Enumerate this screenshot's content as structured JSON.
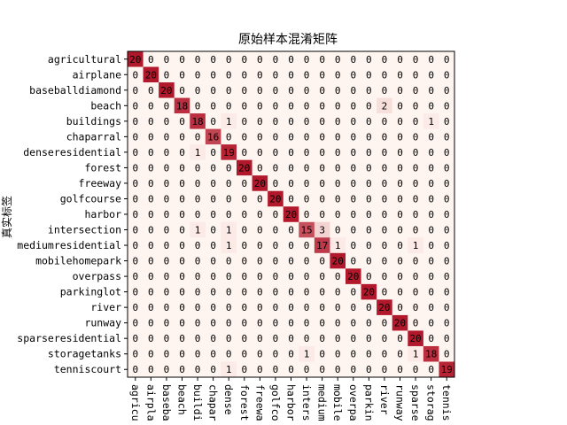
{
  "chart_data": {
    "type": "heatmap",
    "title": "原始样本混淆矩阵",
    "ylabel": "真实标签",
    "xlabel": "",
    "labels": [
      "agricultural",
      "airplane",
      "baseballdiamond",
      "beach",
      "buildings",
      "chaparral",
      "denseresidential",
      "forest",
      "freeway",
      "golfcourse",
      "harbor",
      "intersection",
      "mediumresidential",
      "mobilehomepark",
      "overpass",
      "parkinglot",
      "river",
      "runway",
      "sparseresidential",
      "storagetanks",
      "tenniscourt"
    ],
    "x_tick_labels": [
      "agricu",
      "airpla",
      "baseba",
      "beach",
      "buildi",
      "chapar",
      "dense",
      "forest",
      "freewa",
      "golfco",
      "harbor",
      "inters",
      "medium",
      "mobile",
      "overpa",
      "parkin",
      "river",
      "runway",
      "sparse",
      "storag",
      "tennis"
    ],
    "values": [
      [
        20,
        0,
        0,
        0,
        0,
        0,
        0,
        0,
        0,
        0,
        0,
        0,
        0,
        0,
        0,
        0,
        0,
        0,
        0,
        0,
        0
      ],
      [
        0,
        20,
        0,
        0,
        0,
        0,
        0,
        0,
        0,
        0,
        0,
        0,
        0,
        0,
        0,
        0,
        0,
        0,
        0,
        0,
        0
      ],
      [
        0,
        0,
        20,
        0,
        0,
        0,
        0,
        0,
        0,
        0,
        0,
        0,
        0,
        0,
        0,
        0,
        0,
        0,
        0,
        0,
        0
      ],
      [
        0,
        0,
        0,
        18,
        0,
        0,
        0,
        0,
        0,
        0,
        0,
        0,
        0,
        0,
        0,
        0,
        2,
        0,
        0,
        0,
        0
      ],
      [
        0,
        0,
        0,
        0,
        18,
        0,
        1,
        0,
        0,
        0,
        0,
        0,
        0,
        0,
        0,
        0,
        0,
        0,
        0,
        1,
        0
      ],
      [
        0,
        0,
        0,
        0,
        0,
        16,
        0,
        0,
        0,
        0,
        0,
        0,
        0,
        0,
        0,
        0,
        0,
        0,
        0,
        0,
        0
      ],
      [
        0,
        0,
        0,
        0,
        1,
        0,
        19,
        0,
        0,
        0,
        0,
        0,
        0,
        0,
        0,
        0,
        0,
        0,
        0,
        0,
        0
      ],
      [
        0,
        0,
        0,
        0,
        0,
        0,
        0,
        20,
        0,
        0,
        0,
        0,
        0,
        0,
        0,
        0,
        0,
        0,
        0,
        0,
        0
      ],
      [
        0,
        0,
        0,
        0,
        0,
        0,
        0,
        0,
        20,
        0,
        0,
        0,
        0,
        0,
        0,
        0,
        0,
        0,
        0,
        0,
        0
      ],
      [
        0,
        0,
        0,
        0,
        0,
        0,
        0,
        0,
        0,
        20,
        0,
        0,
        0,
        0,
        0,
        0,
        0,
        0,
        0,
        0,
        0
      ],
      [
        0,
        0,
        0,
        0,
        0,
        0,
        0,
        0,
        0,
        0,
        20,
        0,
        0,
        0,
        0,
        0,
        0,
        0,
        0,
        0,
        0
      ],
      [
        0,
        0,
        0,
        0,
        1,
        0,
        1,
        0,
        0,
        0,
        0,
        15,
        3,
        0,
        0,
        0,
        0,
        0,
        0,
        0,
        0
      ],
      [
        0,
        0,
        0,
        0,
        0,
        0,
        1,
        0,
        0,
        0,
        0,
        0,
        17,
        1,
        0,
        0,
        0,
        0,
        1,
        0,
        0
      ],
      [
        0,
        0,
        0,
        0,
        0,
        0,
        0,
        0,
        0,
        0,
        0,
        0,
        0,
        20,
        0,
        0,
        0,
        0,
        0,
        0,
        0
      ],
      [
        0,
        0,
        0,
        0,
        0,
        0,
        0,
        0,
        0,
        0,
        0,
        0,
        0,
        0,
        20,
        0,
        0,
        0,
        0,
        0,
        0
      ],
      [
        0,
        0,
        0,
        0,
        0,
        0,
        0,
        0,
        0,
        0,
        0,
        0,
        0,
        0,
        0,
        20,
        0,
        0,
        0,
        0,
        0
      ],
      [
        0,
        0,
        0,
        0,
        0,
        0,
        0,
        0,
        0,
        0,
        0,
        0,
        0,
        0,
        0,
        0,
        20,
        0,
        0,
        0,
        0
      ],
      [
        0,
        0,
        0,
        0,
        0,
        0,
        0,
        0,
        0,
        0,
        0,
        0,
        0,
        0,
        0,
        0,
        0,
        20,
        0,
        0,
        0
      ],
      [
        0,
        0,
        0,
        0,
        0,
        0,
        0,
        0,
        0,
        0,
        0,
        0,
        0,
        0,
        0,
        0,
        0,
        0,
        20,
        0,
        0
      ],
      [
        0,
        0,
        0,
        0,
        0,
        0,
        0,
        0,
        0,
        0,
        0,
        1,
        0,
        0,
        0,
        0,
        0,
        0,
        1,
        18,
        0
      ],
      [
        0,
        0,
        0,
        0,
        0,
        0,
        1,
        0,
        0,
        0,
        0,
        0,
        0,
        0,
        0,
        0,
        0,
        0,
        0,
        0,
        19
      ]
    ],
    "vmin": 0,
    "vmax": 20,
    "colormap": [
      "#fff5f0",
      "#b2182b"
    ],
    "grid": false,
    "legend": "none"
  }
}
